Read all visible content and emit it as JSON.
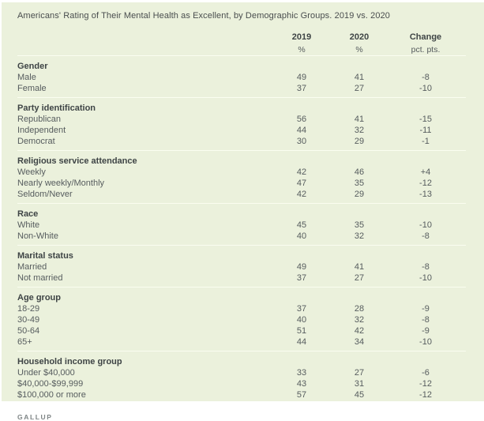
{
  "page": {
    "title": "Americans' Rating of Their Mental Health as Excellent, by Demographic Groups. 2019 vs. 2020",
    "source": "GALLUP",
    "background_color": "#ebf1dc",
    "divider_color": "#fafdf0"
  },
  "table": {
    "columns": [
      {
        "label": "2019",
        "sub": "%"
      },
      {
        "label": "2020",
        "sub": "%"
      },
      {
        "label": "Change",
        "sub": "pct. pts."
      }
    ],
    "sections": [
      {
        "header": "Gender",
        "rows": [
          {
            "label": "Male",
            "v2019": "49",
            "v2020": "41",
            "change": "-8"
          },
          {
            "label": "Female",
            "v2019": "37",
            "v2020": "27",
            "change": "-10"
          }
        ]
      },
      {
        "header": "Party identification",
        "rows": [
          {
            "label": "Republican",
            "v2019": "56",
            "v2020": "41",
            "change": "-15"
          },
          {
            "label": "Independent",
            "v2019": "44",
            "v2020": "32",
            "change": "-11"
          },
          {
            "label": "Democrat",
            "v2019": "30",
            "v2020": "29",
            "change": "-1"
          }
        ]
      },
      {
        "header": "Religious service attendance",
        "rows": [
          {
            "label": "Weekly",
            "v2019": "42",
            "v2020": "46",
            "change": "+4"
          },
          {
            "label": "Nearly weekly/Monthly",
            "v2019": "47",
            "v2020": "35",
            "change": "-12"
          },
          {
            "label": "Seldom/Never",
            "v2019": "42",
            "v2020": "29",
            "change": "-13"
          }
        ]
      },
      {
        "header": "Race",
        "rows": [
          {
            "label": "White",
            "v2019": "45",
            "v2020": "35",
            "change": "-10"
          },
          {
            "label": "Non-White",
            "v2019": "40",
            "v2020": "32",
            "change": "-8"
          }
        ]
      },
      {
        "header": "Marital status",
        "rows": [
          {
            "label": "Married",
            "v2019": "49",
            "v2020": "41",
            "change": "-8"
          },
          {
            "label": "Not married",
            "v2019": "37",
            "v2020": "27",
            "change": "-10"
          }
        ]
      },
      {
        "header": "Age group",
        "rows": [
          {
            "label": "18-29",
            "v2019": "37",
            "v2020": "28",
            "change": "-9"
          },
          {
            "label": "30-49",
            "v2019": "40",
            "v2020": "32",
            "change": "-8"
          },
          {
            "label": "50-64",
            "v2019": "51",
            "v2020": "42",
            "change": "-9"
          },
          {
            "label": "65+",
            "v2019": "44",
            "v2020": "34",
            "change": "-10"
          }
        ]
      },
      {
        "header": "Household income group",
        "rows": [
          {
            "label": "Under $40,000",
            "v2019": "33",
            "v2020": "27",
            "change": "-6"
          },
          {
            "label": "$40,000-$99,999",
            "v2019": "43",
            "v2020": "31",
            "change": "-12"
          },
          {
            "label": "$100,000 or more",
            "v2019": "57",
            "v2020": "45",
            "change": "-12"
          }
        ]
      }
    ]
  },
  "chart_data": {
    "type": "table",
    "title": "Americans' Rating of Their Mental Health as Excellent, by Demographic Groups. 2019 vs. 2020",
    "columns": [
      "2019 %",
      "2020 %",
      "Change pct. pts."
    ],
    "groups": [
      {
        "name": "Gender",
        "rows": [
          [
            "Male",
            49,
            41,
            -8
          ],
          [
            "Female",
            37,
            27,
            -10
          ]
        ]
      },
      {
        "name": "Party identification",
        "rows": [
          [
            "Republican",
            56,
            41,
            -15
          ],
          [
            "Independent",
            44,
            32,
            -11
          ],
          [
            "Democrat",
            30,
            29,
            -1
          ]
        ]
      },
      {
        "name": "Religious service attendance",
        "rows": [
          [
            "Weekly",
            42,
            46,
            4
          ],
          [
            "Nearly weekly/Monthly",
            47,
            35,
            -12
          ],
          [
            "Seldom/Never",
            42,
            29,
            -13
          ]
        ]
      },
      {
        "name": "Race",
        "rows": [
          [
            "White",
            45,
            35,
            -10
          ],
          [
            "Non-White",
            40,
            32,
            -8
          ]
        ]
      },
      {
        "name": "Marital status",
        "rows": [
          [
            "Married",
            49,
            41,
            -8
          ],
          [
            "Not married",
            37,
            27,
            -10
          ]
        ]
      },
      {
        "name": "Age group",
        "rows": [
          [
            "18-29",
            37,
            28,
            -9
          ],
          [
            "30-49",
            40,
            32,
            -8
          ],
          [
            "50-64",
            51,
            42,
            -9
          ],
          [
            "65+",
            44,
            34,
            -10
          ]
        ]
      },
      {
        "name": "Household income group",
        "rows": [
          [
            "Under $40,000",
            33,
            27,
            -6
          ],
          [
            "$40,000-$99,999",
            43,
            31,
            -12
          ],
          [
            "$100,000 or more",
            57,
            45,
            -12
          ]
        ]
      }
    ],
    "source": "GALLUP"
  }
}
